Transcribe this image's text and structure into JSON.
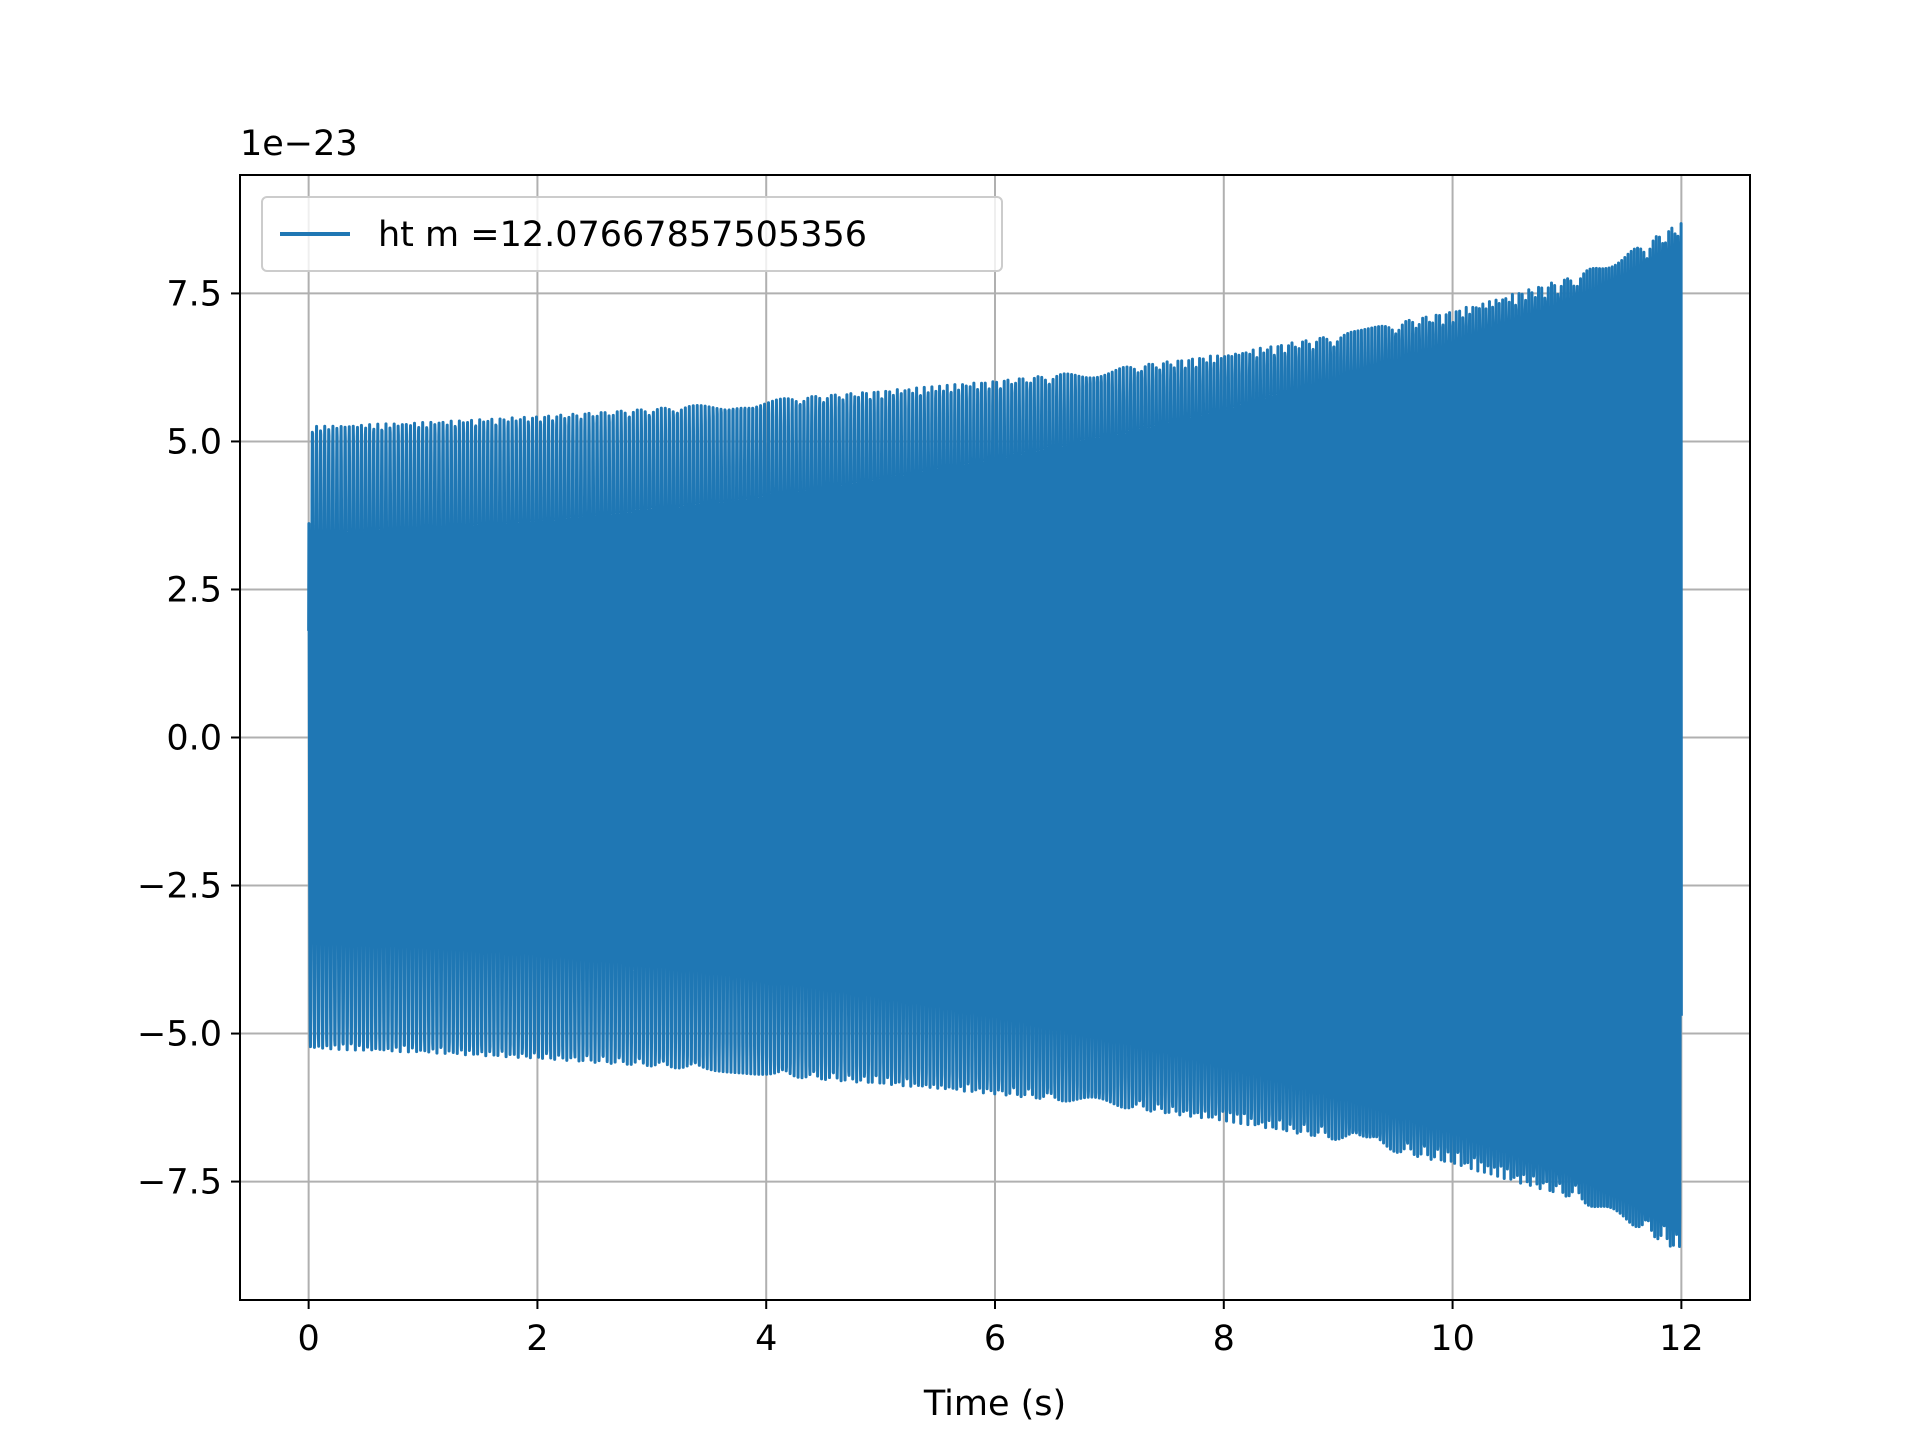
{
  "colors": {
    "series": "#1f77b4",
    "grid": "#b0b0b0",
    "axes": "#000000",
    "legend_border": "#cccccc",
    "background": "#ffffff"
  },
  "chart_data": {
    "type": "line",
    "title": "",
    "xlabel": "Time (s)",
    "ylabel": "",
    "y_offset_text": "1e−23",
    "y_scale_factor": 1e-23,
    "xlim": [
      -0.6,
      12.6
    ],
    "ylim": [
      -9.5,
      9.5
    ],
    "grid": true,
    "legend_position": "upper-left",
    "x_ticks": [
      0,
      2,
      4,
      6,
      8,
      10,
      12
    ],
    "x_tick_labels": [
      "0",
      "2",
      "4",
      "6",
      "8",
      "10",
      "12"
    ],
    "y_ticks": [
      -7.5,
      -5.0,
      -2.5,
      0.0,
      2.5,
      5.0,
      7.5
    ],
    "y_tick_labels": [
      "−7.5",
      "−5.0",
      "−2.5",
      "0.0",
      "2.5",
      "5.0",
      "7.5"
    ],
    "series": [
      {
        "name": "ht m =12.07667857505356",
        "description_kind": "chirp",
        "start_value": 1.8,
        "end_value": -4.7,
        "t_start": 0.0,
        "t_end": 12.0,
        "envelope": [
          {
            "t": 0.0,
            "amp": 5.25
          },
          {
            "t": 1.0,
            "amp": 5.32
          },
          {
            "t": 2.0,
            "amp": 5.42
          },
          {
            "t": 3.0,
            "amp": 5.55
          },
          {
            "t": 4.0,
            "amp": 5.7
          },
          {
            "t": 5.0,
            "amp": 5.85
          },
          {
            "t": 6.0,
            "amp": 6.02
          },
          {
            "t": 7.0,
            "amp": 6.22
          },
          {
            "t": 8.0,
            "amp": 6.47
          },
          {
            "t": 9.0,
            "amp": 6.8
          },
          {
            "t": 10.0,
            "amp": 7.2
          },
          {
            "t": 11.0,
            "amp": 7.75
          },
          {
            "t": 11.5,
            "amp": 8.15
          },
          {
            "t": 12.0,
            "amp": 8.7
          }
        ]
      }
    ]
  }
}
